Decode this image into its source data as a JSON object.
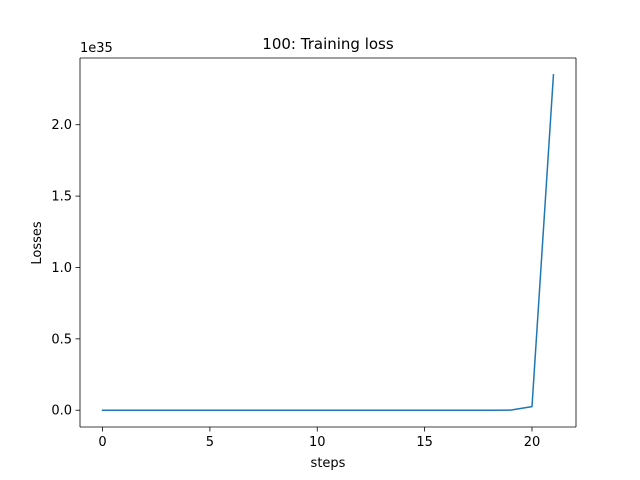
{
  "chart_data": {
    "type": "line",
    "title": "100: Training loss",
    "xlabel": "steps",
    "ylabel": "Losses",
    "offset_text": "1e35",
    "xlim": [
      -1.05,
      22.05
    ],
    "ylim": [
      -0.1175,
      2.4675
    ],
    "xticks": [
      0,
      5,
      10,
      15,
      20
    ],
    "xtick_labels": [
      "0",
      "5",
      "10",
      "15",
      "20"
    ],
    "yticks": [
      0.0,
      0.5,
      1.0,
      1.5,
      2.0
    ],
    "ytick_labels": [
      "0.0",
      "0.5",
      "1.0",
      "1.5",
      "2.0"
    ],
    "grid": false,
    "series": [
      {
        "color": "#1f77b4",
        "x": [
          0,
          1,
          2,
          3,
          4,
          5,
          6,
          7,
          8,
          9,
          10,
          11,
          12,
          13,
          14,
          15,
          16,
          17,
          18,
          19,
          20,
          21
        ],
        "y": [
          0,
          0,
          0,
          0,
          0,
          0,
          0,
          0,
          0,
          0,
          0,
          0,
          0,
          0,
          0,
          0,
          0,
          0,
          0,
          0.001,
          0.025,
          2.35
        ]
      }
    ]
  }
}
